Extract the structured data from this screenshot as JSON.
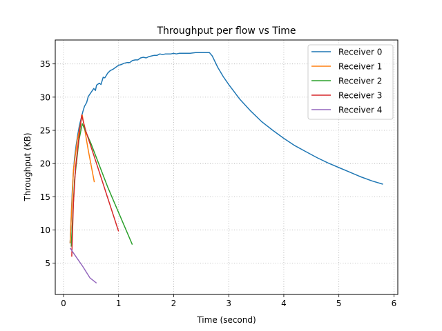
{
  "chart_data": {
    "type": "line",
    "title": "Throughput per flow vs Time",
    "xlabel": "Time (second)",
    "ylabel": "Throughput (KB)",
    "xlim": [
      -0.15,
      6.07
    ],
    "ylim": [
      0.3,
      38.6
    ],
    "xticks": [
      "0",
      "1",
      "2",
      "3",
      "4",
      "5",
      "6"
    ],
    "yticks": [
      "5",
      "10",
      "15",
      "20",
      "25",
      "30",
      "35"
    ],
    "grid": true,
    "legend": "upper right",
    "series": [
      {
        "name": "Receiver 0",
        "color": "#1f77b4",
        "points": [
          [
            0.12,
            8.0
          ],
          [
            0.14,
            12.0
          ],
          [
            0.16,
            16.0
          ],
          [
            0.18,
            18.8
          ],
          [
            0.2,
            20.8
          ],
          [
            0.23,
            22.8
          ],
          [
            0.26,
            24.4
          ],
          [
            0.29,
            25.8
          ],
          [
            0.32,
            26.8
          ],
          [
            0.35,
            27.8
          ],
          [
            0.38,
            28.6
          ],
          [
            0.42,
            29.2
          ],
          [
            0.45,
            30.1
          ],
          [
            0.5,
            30.7
          ],
          [
            0.55,
            31.3
          ],
          [
            0.58,
            31.0
          ],
          [
            0.6,
            31.8
          ],
          [
            0.65,
            32.1
          ],
          [
            0.68,
            31.9
          ],
          [
            0.72,
            33.0
          ],
          [
            0.75,
            32.9
          ],
          [
            0.8,
            33.6
          ],
          [
            0.85,
            34.0
          ],
          [
            0.9,
            34.2
          ],
          [
            0.95,
            34.5
          ],
          [
            1.0,
            34.8
          ],
          [
            1.05,
            34.9
          ],
          [
            1.1,
            35.1
          ],
          [
            1.15,
            35.2
          ],
          [
            1.2,
            35.2
          ],
          [
            1.25,
            35.5
          ],
          [
            1.3,
            35.6
          ],
          [
            1.35,
            35.6
          ],
          [
            1.4,
            35.9
          ],
          [
            1.45,
            36.0
          ],
          [
            1.5,
            35.9
          ],
          [
            1.55,
            36.1
          ],
          [
            1.6,
            36.2
          ],
          [
            1.65,
            36.3
          ],
          [
            1.7,
            36.3
          ],
          [
            1.75,
            36.5
          ],
          [
            1.8,
            36.4
          ],
          [
            1.85,
            36.5
          ],
          [
            1.9,
            36.5
          ],
          [
            1.95,
            36.5
          ],
          [
            2.0,
            36.6
          ],
          [
            2.05,
            36.5
          ],
          [
            2.1,
            36.6
          ],
          [
            2.15,
            36.6
          ],
          [
            2.2,
            36.6
          ],
          [
            2.3,
            36.6
          ],
          [
            2.4,
            36.7
          ],
          [
            2.5,
            36.7
          ],
          [
            2.6,
            36.7
          ],
          [
            2.65,
            36.7
          ],
          [
            2.7,
            36.2
          ],
          [
            2.8,
            34.5
          ],
          [
            2.9,
            33.1
          ],
          [
            3.0,
            31.9
          ],
          [
            3.2,
            29.7
          ],
          [
            3.4,
            27.9
          ],
          [
            3.6,
            26.3
          ],
          [
            3.8,
            25.0
          ],
          [
            4.0,
            23.8
          ],
          [
            4.2,
            22.7
          ],
          [
            4.4,
            21.8
          ],
          [
            4.6,
            20.9
          ],
          [
            4.8,
            20.1
          ],
          [
            5.0,
            19.4
          ],
          [
            5.2,
            18.7
          ],
          [
            5.4,
            18.0
          ],
          [
            5.6,
            17.4
          ],
          [
            5.8,
            16.9
          ]
        ]
      },
      {
        "name": "Receiver 1",
        "color": "#ff7f0e",
        "points": [
          [
            0.12,
            8.0
          ],
          [
            0.18,
            19.0
          ],
          [
            0.25,
            23.5
          ],
          [
            0.34,
            27.3
          ],
          [
            0.45,
            22.0
          ],
          [
            0.56,
            17.2
          ]
        ]
      },
      {
        "name": "Receiver 2",
        "color": "#2ca02c",
        "points": [
          [
            0.14,
            7.5
          ],
          [
            0.2,
            17.5
          ],
          [
            0.28,
            23.5
          ],
          [
            0.34,
            26.0
          ],
          [
            0.5,
            23.0
          ],
          [
            0.8,
            16.5
          ],
          [
            1.25,
            7.8
          ]
        ]
      },
      {
        "name": "Receiver 3",
        "color": "#d62728",
        "points": [
          [
            0.15,
            6.0
          ],
          [
            0.18,
            14.0
          ],
          [
            0.22,
            19.5
          ],
          [
            0.28,
            24.0
          ],
          [
            0.33,
            27.3
          ],
          [
            0.4,
            25.0
          ],
          [
            0.6,
            20.0
          ],
          [
            1.0,
            9.8
          ]
        ]
      },
      {
        "name": "Receiver 4",
        "color": "#9467bd",
        "points": [
          [
            0.12,
            7.3
          ],
          [
            0.2,
            6.3
          ],
          [
            0.35,
            4.5
          ],
          [
            0.48,
            2.8
          ],
          [
            0.6,
            2.0
          ]
        ]
      }
    ]
  }
}
